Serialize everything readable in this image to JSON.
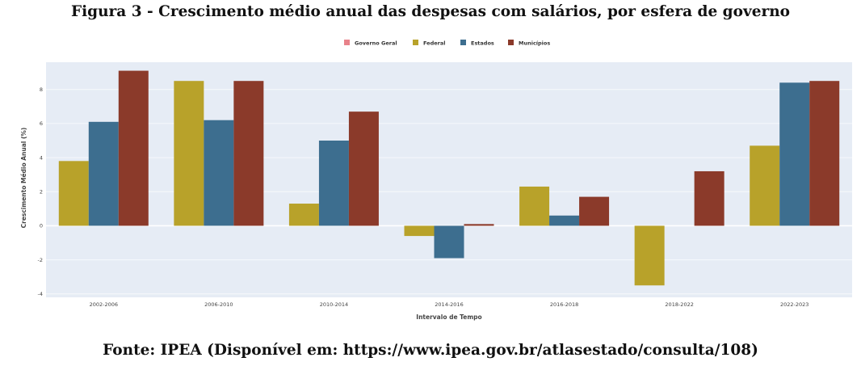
{
  "figure": {
    "title": "Figura 3 - Crescimento médio anual das despesas com salários, por esfera de governo",
    "source": "Fonte: IPEA (Disponível em: https://www.ipea.gov.br/atlasestado/consulta/108)"
  },
  "chart_data": {
    "type": "bar",
    "title": "",
    "xlabel": "Intervalo de Tempo",
    "ylabel": "Crescimento Médio Anual (%)",
    "ylim": [
      -4.2,
      9.6
    ],
    "yticks": [
      -4,
      -2,
      0,
      2,
      4,
      6,
      8
    ],
    "grid": true,
    "legend_position": "top-center",
    "categories": [
      "2002-2006",
      "2006-2010",
      "2010-2014",
      "2014-2016",
      "2016-2018",
      "2018-2022",
      "2022-2023"
    ],
    "series": [
      {
        "name": "Governo Geral",
        "color": "#e8828a",
        "values": [
          null,
          null,
          null,
          null,
          null,
          null,
          null
        ]
      },
      {
        "name": "Federal",
        "color": "#b8a22a",
        "values": [
          3.8,
          8.5,
          1.3,
          -0.6,
          2.3,
          -3.5,
          4.7
        ]
      },
      {
        "name": "Estados",
        "color": "#3d6e8f",
        "values": [
          6.1,
          6.2,
          5.0,
          -1.9,
          0.6,
          null,
          8.4
        ]
      },
      {
        "name": "Municípios",
        "color": "#8b3a2a",
        "values": [
          9.1,
          8.5,
          6.7,
          0.1,
          1.7,
          3.2,
          8.5
        ]
      }
    ]
  }
}
